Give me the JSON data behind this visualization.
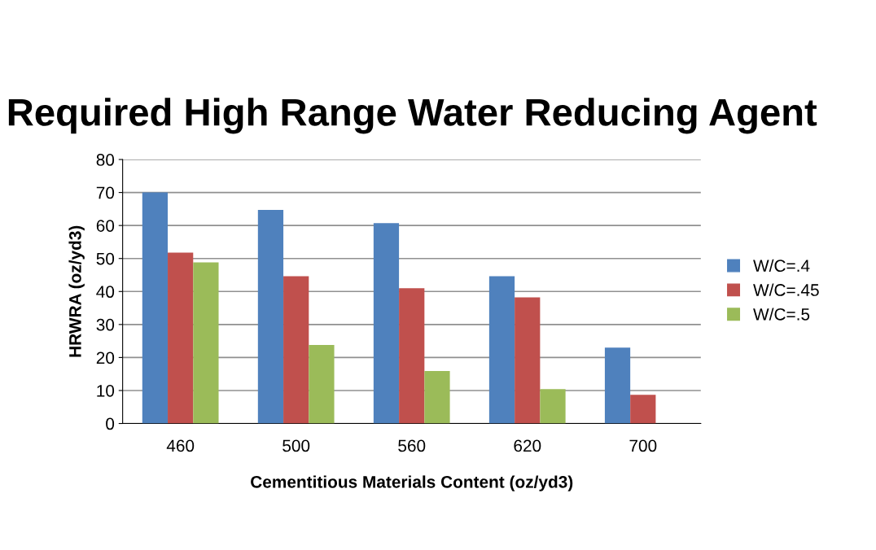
{
  "chart_data": {
    "type": "bar",
    "title": "Required High Range Water Reducing Agent",
    "xlabel": "Cementitious Materials Content (oz/yd3)",
    "ylabel": "HRWRA (oz/yd3)",
    "categories": [
      "460",
      "500",
      "560",
      "620",
      "700"
    ],
    "series": [
      {
        "name": "W/C=.4",
        "color": "#4f81bd",
        "values": [
          70,
          64.7,
          60.7,
          44.6,
          23
        ]
      },
      {
        "name": "W/C=.45",
        "color": "#c0504d",
        "values": [
          51.8,
          44.6,
          41,
          38.2,
          8.7
        ]
      },
      {
        "name": "W/C=.5",
        "color": "#9bbb59",
        "values": [
          48.8,
          23.8,
          15.9,
          10.4,
          null
        ]
      }
    ],
    "ylim": [
      0,
      80
    ],
    "yticks": [
      0,
      10,
      20,
      30,
      40,
      50,
      60,
      70,
      80
    ],
    "grid": "y",
    "legend": "right"
  }
}
